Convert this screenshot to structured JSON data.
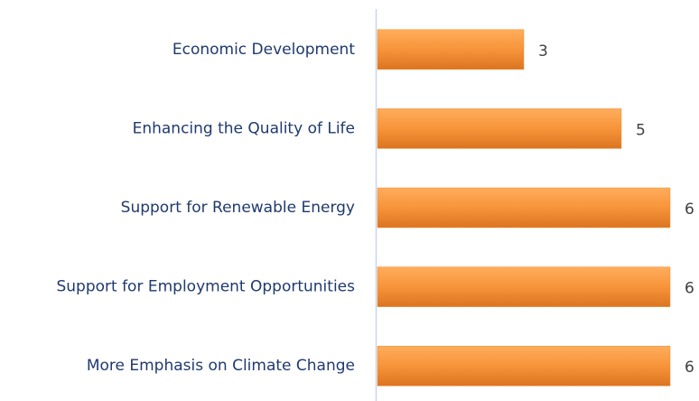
{
  "chart_data": {
    "type": "bar",
    "orientation": "horizontal",
    "categories": [
      "Economic Development",
      "Enhancing the Quality of Life",
      "Support for Renewable Energy",
      "Support for Employment Opportunities",
      "More Emphasis on Climate Change"
    ],
    "values": [
      3,
      5,
      6,
      6,
      6
    ],
    "color": "#f7943a",
    "xlim": [
      0,
      6
    ]
  }
}
